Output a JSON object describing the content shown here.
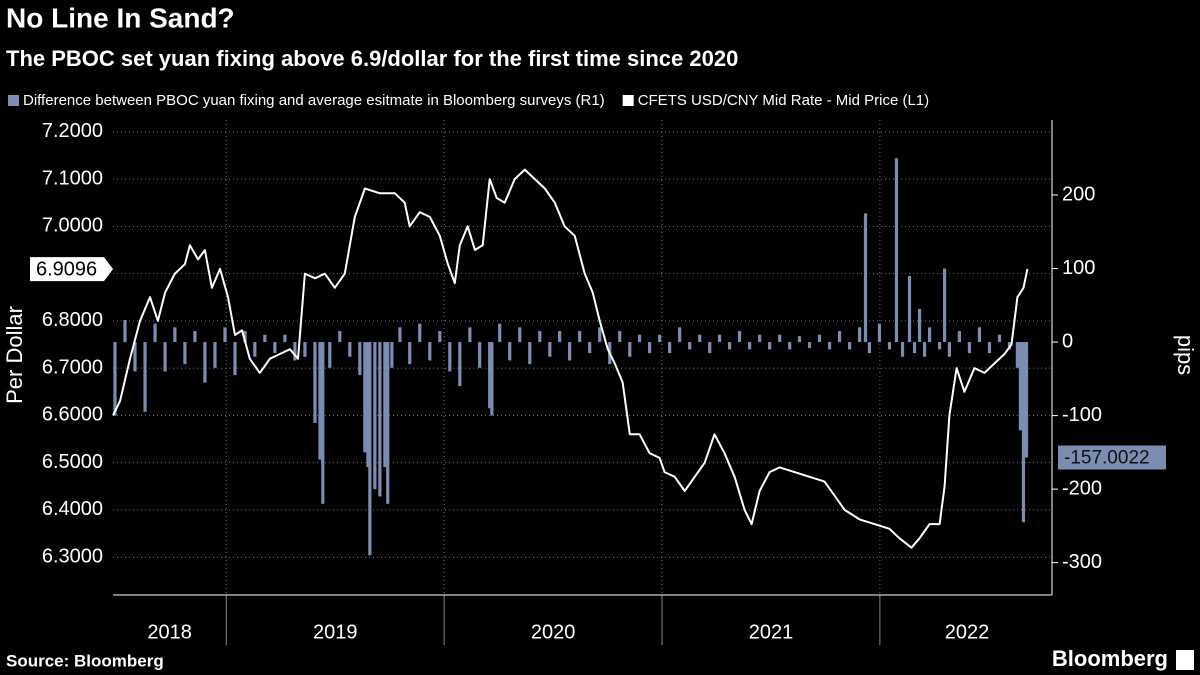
{
  "chart_data": {
    "type": "bar-line",
    "title": "No Line In Sand?",
    "subtitle": "The PBOC set yuan fixing above 6.9/dollar for the first time since 2020",
    "y_label": "Per Dollar",
    "y2_label": "pips",
    "source": "Source: Bloomberg",
    "brand": "Bloomberg",
    "xlim": [
      2018.48,
      2022.79
    ],
    "xticks": [
      {
        "value": 2018.74,
        "label": "2018"
      },
      {
        "value": 2019.5,
        "label": "2019"
      },
      {
        "value": 2020.5,
        "label": "2020"
      },
      {
        "value": 2021.5,
        "label": "2021"
      },
      {
        "value": 2022.4,
        "label": "2022"
      }
    ],
    "ylim": [
      6.22,
      7.225
    ],
    "yticks": [
      {
        "value": 6.3,
        "label": "6.3000"
      },
      {
        "value": 6.4,
        "label": "6.4000"
      },
      {
        "value": 6.5,
        "label": "6.5000"
      },
      {
        "value": 6.6,
        "label": "6.6000"
      },
      {
        "value": 6.7,
        "label": "6.7000"
      },
      {
        "value": 6.8,
        "label": "6.8000"
      },
      {
        "value": 6.9,
        "label": "6.9000"
      },
      {
        "value": 7.0,
        "label": "7.0000"
      },
      {
        "value": 7.1,
        "label": "7.1000"
      },
      {
        "value": 7.2,
        "label": "7.2000"
      }
    ],
    "y2lim": [
      -344,
      302
    ],
    "y2ticks": [
      -300,
      -200,
      -100,
      0,
      100,
      200
    ],
    "grid": true,
    "series": [
      {
        "name": "Difference between PBOC yuan fixing and average esitmate in Bloomberg surveys (R1)",
        "type": "bar",
        "axis": "y2",
        "color": "#7b8db3",
        "x": [
          2018.489,
          2018.535,
          2018.581,
          2018.627,
          2018.673,
          2018.719,
          2018.764,
          2018.81,
          2018.856,
          2018.902,
          2018.948,
          2018.994,
          2019.04,
          2019.086,
          2019.131,
          2019.177,
          2019.223,
          2019.269,
          2019.315,
          2019.361,
          2019.407,
          2019.43,
          2019.443,
          2019.475,
          2019.521,
          2019.567,
          2019.613,
          2019.636,
          2019.65,
          2019.659,
          2019.682,
          2019.705,
          2019.728,
          2019.741,
          2019.76,
          2019.797,
          2019.842,
          2019.888,
          2019.934,
          2019.98,
          2020.026,
          2020.072,
          2020.118,
          2020.163,
          2020.209,
          2020.219,
          2020.255,
          2020.301,
          2020.347,
          2020.393,
          2020.439,
          2020.485,
          2020.53,
          2020.576,
          2020.622,
          2020.668,
          2020.714,
          2020.76,
          2020.806,
          2020.852,
          2020.897,
          2020.943,
          2020.989,
          2021.035,
          2021.081,
          2021.127,
          2021.173,
          2021.219,
          2021.264,
          2021.31,
          2021.356,
          2021.402,
          2021.448,
          2021.494,
          2021.54,
          2021.586,
          2021.631,
          2021.677,
          2021.723,
          2021.769,
          2021.815,
          2021.861,
          2021.907,
          2021.934,
          2021.952,
          2021.998,
          2022.044,
          2022.076,
          2022.104,
          2022.136,
          2022.159,
          2022.182,
          2022.205,
          2022.228,
          2022.274,
          2022.297,
          2022.319,
          2022.365,
          2022.411,
          2022.457,
          2022.503,
          2022.549,
          2022.595,
          2022.631,
          2022.645,
          2022.659,
          2022.673
        ],
        "values": [
          -100,
          30,
          -40,
          -95,
          25,
          -40,
          20,
          -30,
          15,
          -55,
          -35,
          20,
          -45,
          15,
          -20,
          10,
          -15,
          10,
          -25,
          -20,
          -110,
          -160,
          -220,
          -35,
          15,
          -20,
          -45,
          -150,
          -170,
          -290,
          -200,
          -210,
          -170,
          -220,
          -35,
          20,
          -30,
          25,
          -25,
          15,
          -40,
          -60,
          20,
          -35,
          -90,
          -100,
          25,
          -25,
          20,
          -30,
          15,
          -20,
          15,
          -25,
          15,
          -15,
          20,
          -30,
          15,
          -20,
          10,
          -15,
          10,
          -15,
          20,
          -10,
          10,
          -15,
          10,
          -10,
          15,
          -10,
          10,
          -10,
          10,
          -10,
          8,
          -8,
          10,
          -10,
          15,
          -10,
          20,
          175,
          -15,
          25,
          -10,
          250,
          -20,
          90,
          -15,
          45,
          -20,
          20,
          -10,
          100,
          -20,
          15,
          -15,
          20,
          -15,
          10,
          -10,
          -35,
          -120,
          -245,
          -157.0022
        ]
      },
      {
        "name": "CFETS USD/CNY Mid Rate - Mid Price (L1)",
        "type": "line",
        "axis": "y",
        "color": "#ffffff",
        "x": [
          2018.48,
          2018.512,
          2018.558,
          2018.604,
          2018.65,
          2018.686,
          2018.719,
          2018.764,
          2018.81,
          2018.833,
          2018.87,
          2018.902,
          2018.934,
          2018.971,
          2019.008,
          2019.04,
          2019.072,
          2019.108,
          2019.154,
          2019.2,
          2019.246,
          2019.292,
          2019.329,
          2019.361,
          2019.407,
          2019.452,
          2019.498,
          2019.544,
          2019.59,
          2019.636,
          2019.705,
          2019.774,
          2019.819,
          2019.842,
          2019.888,
          2019.934,
          2019.98,
          2020.017,
          2020.049,
          2020.072,
          2020.108,
          2020.141,
          2020.177,
          2020.209,
          2020.241,
          2020.278,
          2020.324,
          2020.37,
          2020.416,
          2020.462,
          2020.508,
          2020.553,
          2020.599,
          2020.645,
          2020.682,
          2020.714,
          2020.751,
          2020.783,
          2020.819,
          2020.852,
          2020.897,
          2020.943,
          2020.989,
          2021.012,
          2021.058,
          2021.104,
          2021.15,
          2021.196,
          2021.241,
          2021.287,
          2021.333,
          2021.379,
          2021.411,
          2021.448,
          2021.494,
          2021.54,
          2021.608,
          2021.677,
          2021.746,
          2021.792,
          2021.838,
          2021.907,
          2021.975,
          2022.044,
          2022.09,
          2022.145,
          2022.182,
          2022.228,
          2022.274,
          2022.297,
          2022.319,
          2022.352,
          2022.388,
          2022.434,
          2022.48,
          2022.526,
          2022.572,
          2022.604,
          2022.631,
          2022.659,
          2022.677
        ],
        "values": [
          6.6,
          6.63,
          6.72,
          6.8,
          6.85,
          6.8,
          6.86,
          6.9,
          6.92,
          6.96,
          6.93,
          6.95,
          6.87,
          6.91,
          6.85,
          6.77,
          6.78,
          6.72,
          6.69,
          6.72,
          6.73,
          6.74,
          6.72,
          6.9,
          6.89,
          6.9,
          6.87,
          6.9,
          7.02,
          7.08,
          7.07,
          7.07,
          7.05,
          7.0,
          7.03,
          7.02,
          6.98,
          6.92,
          6.88,
          6.96,
          7.0,
          6.95,
          6.96,
          7.1,
          7.06,
          7.05,
          7.1,
          7.12,
          7.1,
          7.08,
          7.05,
          7.0,
          6.98,
          6.9,
          6.86,
          6.8,
          6.74,
          6.71,
          6.67,
          6.56,
          6.56,
          6.52,
          6.51,
          6.48,
          6.47,
          6.44,
          6.47,
          6.5,
          6.56,
          6.52,
          6.47,
          6.4,
          6.37,
          6.44,
          6.48,
          6.49,
          6.48,
          6.47,
          6.46,
          6.43,
          6.4,
          6.38,
          6.37,
          6.36,
          6.34,
          6.32,
          6.34,
          6.37,
          6.37,
          6.45,
          6.6,
          6.7,
          6.65,
          6.7,
          6.69,
          6.71,
          6.73,
          6.75,
          6.85,
          6.87,
          6.9096
        ]
      }
    ]
  }
}
